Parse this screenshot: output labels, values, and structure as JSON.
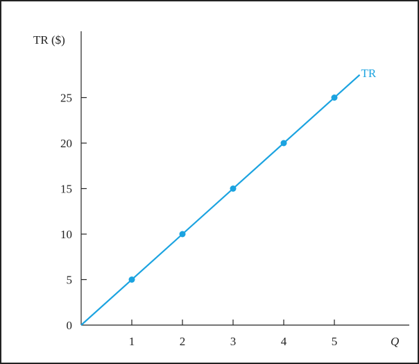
{
  "chart_data": {
    "type": "line",
    "ylabel": "TR ($)",
    "xlabel": "Q",
    "x_ticks": [
      "1",
      "2",
      "3",
      "4",
      "5"
    ],
    "y_ticks": [
      "0",
      "5",
      "10",
      "15",
      "20",
      "25"
    ],
    "xlim": [
      0,
      6.2
    ],
    "ylim": [
      0,
      30
    ],
    "grid": false,
    "series": [
      {
        "name": "TR",
        "color": "#1ba3e0",
        "line": {
          "from": [
            0,
            0
          ],
          "to": [
            5.5,
            27.5
          ]
        },
        "points": [
          {
            "x": 1,
            "y": 5
          },
          {
            "x": 2,
            "y": 10
          },
          {
            "x": 3,
            "y": 15
          },
          {
            "x": 4,
            "y": 20
          },
          {
            "x": 5,
            "y": 25
          }
        ]
      }
    ]
  }
}
